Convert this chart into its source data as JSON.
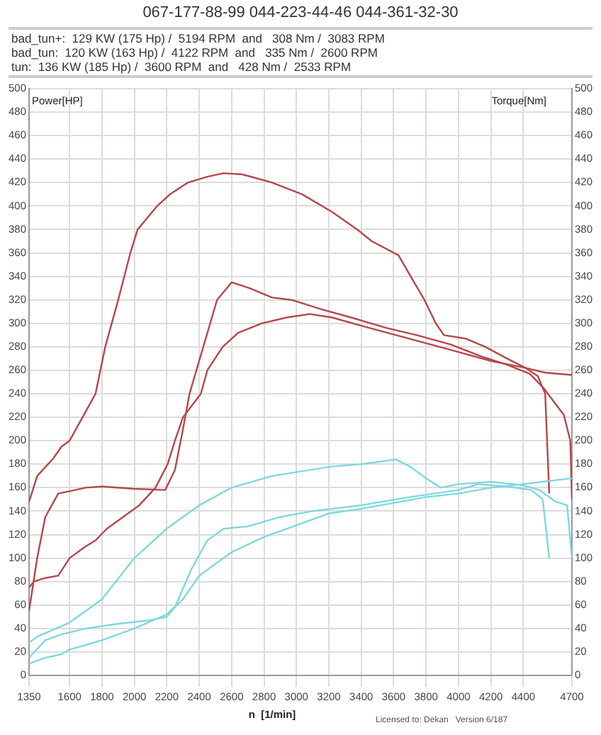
{
  "chart_data": {
    "type": "line",
    "title": "067-177-88-99 044-223-44-46 044-361-32-30",
    "annotations": [
      "bad_tun+:  129 KW (175 Hp) /  5194 RPM  and   308 Nm /  3083 RPM",
      "bad_tun:  120 KW (163 Hp) /  4122 RPM  and   335 Nm /  2600 RPM",
      "tun:  136 KW (185 Hp) /  3600 RPM  and   428 Nm /  2533 RPM",
      "Licensed to: Dekan   Version 6/187"
    ],
    "xlabel": "n  [1/min]",
    "ylabel": "Power[HP]",
    "y2label": "Torque[Nm]",
    "xlim": [
      1350,
      4700
    ],
    "xticks": [
      1350,
      1600,
      1800,
      2000,
      2200,
      2400,
      2600,
      2800,
      3000,
      3200,
      3400,
      3600,
      3800,
      4000,
      4200,
      4400,
      4700
    ],
    "ylim": [
      0,
      500
    ],
    "yticks": [
      0,
      20,
      40,
      60,
      80,
      100,
      120,
      140,
      160,
      180,
      200,
      220,
      240,
      260,
      280,
      300,
      320,
      340,
      360,
      380,
      400,
      420,
      440,
      460,
      480,
      500
    ],
    "y2lim": [
      0,
      500
    ],
    "y2ticks": [
      0,
      20,
      40,
      60,
      80,
      100,
      120,
      140,
      160,
      180,
      200,
      220,
      240,
      260,
      280,
      300,
      320,
      340,
      360,
      380,
      400,
      420,
      440,
      460,
      480,
      500
    ],
    "grid": true,
    "legend": false,
    "marker": "none",
    "line_style": "solid",
    "series": [
      {
        "color": "#b5474b",
        "axis": "y2",
        "x": [
          1350,
          1400,
          1500,
          1550,
          1600,
          1700,
          1760,
          1820,
          1900,
          1975,
          2020,
          2140,
          2220,
          2330,
          2450,
          2550,
          2665,
          2850,
          3035,
          3220,
          3375,
          3465,
          3630,
          3705,
          3790,
          3860,
          3910,
          4045,
          4165,
          4300,
          4415,
          4490,
          4535,
          4560
        ],
        "values": [
          148,
          170,
          185,
          195,
          200,
          225,
          240,
          280,
          320,
          360,
          380,
          400,
          410,
          420,
          425,
          428,
          427,
          420,
          410,
          395,
          380,
          370,
          358,
          340,
          320,
          300,
          290,
          287,
          280,
          270,
          262,
          255,
          240,
          155
        ]
      },
      {
        "color": "#b5474b",
        "axis": "y2",
        "x": [
          1350,
          1400,
          1450,
          1530,
          1600,
          1700,
          1800,
          2000,
          2190,
          2250,
          2300,
          2340,
          2510,
          2600,
          2710,
          2850,
          2970,
          3153,
          3337,
          3558,
          3742,
          3953,
          4138,
          4294,
          4440,
          4524,
          4650,
          4690,
          4700
        ],
        "values": [
          55,
          100,
          135,
          155,
          157,
          160,
          161,
          159,
          158,
          175,
          210,
          240,
          320,
          335,
          330,
          322,
          320,
          312,
          305,
          296,
          290,
          282,
          272,
          265,
          257,
          245,
          222,
          200,
          150
        ]
      },
      {
        "color": "#b5474b",
        "axis": "y2",
        "x": [
          1350,
          1380,
          1450,
          1530,
          1600,
          1700,
          1760,
          1830,
          1930,
          2030,
          2130,
          2205,
          2250,
          2300,
          2410,
          2450,
          2545,
          2640,
          2785,
          2940,
          3083,
          3220,
          3400,
          3615,
          3830,
          4015,
          4200,
          4415,
          4535,
          4700
        ],
        "values": [
          75,
          80,
          83,
          85,
          100,
          110,
          115,
          125,
          135,
          145,
          160,
          180,
          200,
          220,
          240,
          260,
          280,
          292,
          300,
          305,
          308,
          305,
          298,
          290,
          282,
          275,
          268,
          262,
          258,
          256
        ]
      },
      {
        "color": "#7fd8df",
        "axis": "y",
        "x": [
          1350,
          1400,
          1600,
          1800,
          2000,
          2200,
          2400,
          2600,
          2850,
          3217,
          3400,
          3615,
          3700,
          3800,
          3890,
          4000,
          4200,
          4400,
          4500,
          4600,
          4670,
          4700
        ],
        "values": [
          28,
          33,
          45,
          65,
          100,
          125,
          145,
          160,
          170,
          178,
          180,
          184,
          178,
          168,
          160,
          163,
          165,
          162,
          158,
          148,
          145,
          100
        ]
      },
      {
        "color": "#7fd8df",
        "axis": "y",
        "x": [
          1350,
          1450,
          1550,
          1700,
          1900,
          2100,
          2200,
          2250,
          2350,
          2450,
          2550,
          2700,
          2900,
          3100,
          3400,
          3700,
          4000,
          4122,
          4300,
          4450,
          4520,
          4560
        ],
        "values": [
          15,
          30,
          35,
          40,
          44,
          47,
          50,
          58,
          90,
          115,
          125,
          127,
          135,
          140,
          145,
          152,
          158,
          163,
          161,
          158,
          150,
          100
        ]
      },
      {
        "color": "#7fd8df",
        "axis": "y",
        "x": [
          1350,
          1450,
          1550,
          1600,
          1800,
          2000,
          2200,
          2300,
          2400,
          2600,
          2800,
          3000,
          3200,
          3400,
          3600,
          3800,
          4000,
          4200,
          4400,
          4700
        ],
        "values": [
          10,
          15,
          18,
          22,
          30,
          40,
          52,
          65,
          85,
          105,
          118,
          128,
          138,
          142,
          147,
          152,
          155,
          160,
          163,
          168
        ]
      }
    ]
  }
}
